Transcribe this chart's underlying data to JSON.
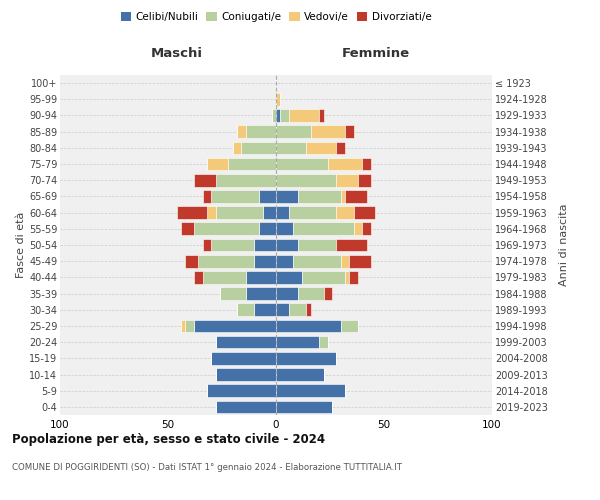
{
  "age_groups": [
    "0-4",
    "5-9",
    "10-14",
    "15-19",
    "20-24",
    "25-29",
    "30-34",
    "35-39",
    "40-44",
    "45-49",
    "50-54",
    "55-59",
    "60-64",
    "65-69",
    "70-74",
    "75-79",
    "80-84",
    "85-89",
    "90-94",
    "95-99",
    "100+"
  ],
  "birth_years": [
    "2019-2023",
    "2014-2018",
    "2009-2013",
    "2004-2008",
    "1999-2003",
    "1994-1998",
    "1989-1993",
    "1984-1988",
    "1979-1983",
    "1974-1978",
    "1969-1973",
    "1964-1968",
    "1959-1963",
    "1954-1958",
    "1949-1953",
    "1944-1948",
    "1939-1943",
    "1934-1938",
    "1929-1933",
    "1924-1928",
    "≤ 1923"
  ],
  "maschi": {
    "celibi": [
      28,
      32,
      28,
      30,
      28,
      38,
      10,
      14,
      14,
      10,
      10,
      8,
      6,
      8,
      0,
      0,
      0,
      0,
      0,
      0,
      0
    ],
    "coniugati": [
      0,
      0,
      0,
      0,
      0,
      4,
      8,
      12,
      20,
      26,
      20,
      30,
      22,
      22,
      28,
      22,
      16,
      14,
      2,
      0,
      0
    ],
    "vedovi": [
      0,
      0,
      0,
      0,
      0,
      2,
      0,
      0,
      0,
      0,
      0,
      0,
      4,
      0,
      0,
      10,
      4,
      4,
      0,
      0,
      0
    ],
    "divorziati": [
      0,
      0,
      0,
      0,
      0,
      0,
      0,
      0,
      4,
      6,
      4,
      6,
      14,
      4,
      10,
      0,
      0,
      0,
      0,
      0,
      0
    ]
  },
  "femmine": {
    "nubili": [
      26,
      32,
      22,
      28,
      20,
      30,
      6,
      10,
      12,
      8,
      10,
      8,
      6,
      10,
      0,
      0,
      0,
      0,
      2,
      0,
      0
    ],
    "coniugate": [
      0,
      0,
      0,
      0,
      4,
      8,
      8,
      12,
      20,
      22,
      18,
      28,
      22,
      20,
      28,
      24,
      14,
      16,
      4,
      0,
      0
    ],
    "vedove": [
      0,
      0,
      0,
      0,
      0,
      0,
      0,
      0,
      2,
      4,
      0,
      4,
      8,
      2,
      10,
      16,
      14,
      16,
      14,
      2,
      0
    ],
    "divorziate": [
      0,
      0,
      0,
      0,
      0,
      0,
      2,
      4,
      4,
      10,
      14,
      4,
      10,
      10,
      6,
      4,
      4,
      4,
      2,
      0,
      0
    ]
  },
  "colors": {
    "celibi": "#4472a8",
    "coniugati": "#b8cfa0",
    "vedovi": "#f5c97a",
    "divorziati": "#c0392b"
  },
  "xlim": 100,
  "title": "Popolazione per età, sesso e stato civile - 2024",
  "subtitle": "COMUNE DI POGGIRIDENTI (SO) - Dati ISTAT 1° gennaio 2024 - Elaborazione TUTTITALIA.IT",
  "ylabel_left": "Fasce di età",
  "ylabel_right": "Anni di nascita",
  "xlabel_left": "Maschi",
  "xlabel_right": "Femmine",
  "legend_labels": [
    "Celibi/Nubili",
    "Coniugati/e",
    "Vedovi/e",
    "Divorziati/e"
  ],
  "bg_color": "#f0f0f0"
}
